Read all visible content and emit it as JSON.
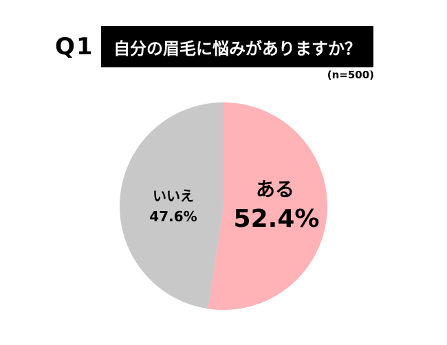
{
  "question_number": "Q1",
  "chart_data": {
    "type": "pie",
    "title": "自分の眉毛に悩みがありますか？",
    "sample_size": "(n=500)",
    "slices": [
      {
        "label": "ある",
        "value": 52.4,
        "value_label": "52.4%",
        "color": "#ffb3b6"
      },
      {
        "label": "いいえ",
        "value": 47.6,
        "value_label": "47.6%",
        "color": "#c8c8c8"
      }
    ],
    "start": "top",
    "direction": "clockwise"
  }
}
